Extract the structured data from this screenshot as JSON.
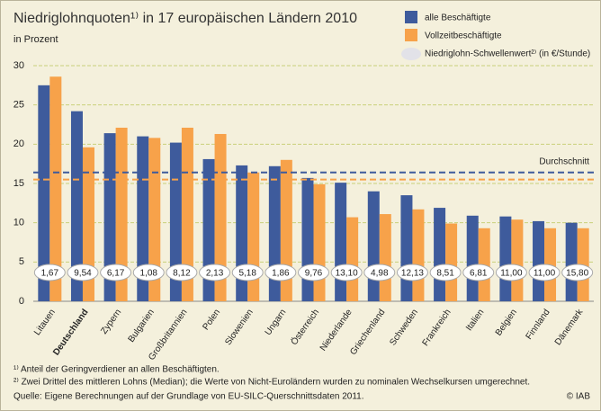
{
  "chart_data": {
    "type": "bar",
    "title": "Niedriglohnquoten¹⁾ in 17 europäischen Ländern 2010",
    "subtitle": "in Prozent",
    "categories": [
      "Litauen",
      "Deutschland",
      "Zypern",
      "Bulgarien",
      "Großbritannien",
      "Polen",
      "Slowenien",
      "Ungarn",
      "Österreich",
      "Niederlande",
      "Griechenland",
      "Schweden",
      "Frankreich",
      "Italien",
      "Belgien",
      "Finnland",
      "Dänemark"
    ],
    "highlight": 1,
    "series": [
      {
        "name": "alle Beschäftigte",
        "color": "#3e5b9c",
        "average": 16.4,
        "values": [
          27.5,
          24.2,
          21.4,
          21.0,
          20.2,
          18.1,
          17.3,
          17.2,
          15.7,
          15.1,
          14.0,
          13.5,
          11.9,
          10.9,
          10.8,
          10.2,
          10.0
        ]
      },
      {
        "name": "Vollzeitbeschäftigte",
        "color": "#f7a24a",
        "average": 15.5,
        "values": [
          28.6,
          19.6,
          22.1,
          20.8,
          22.1,
          21.3,
          16.4,
          18.0,
          14.9,
          10.7,
          11.1,
          11.7,
          9.9,
          9.3,
          10.4,
          9.3,
          9.3
        ]
      }
    ],
    "average_label": "Durchschnitt",
    "threshold": {
      "name": "Niedriglohn-Schwellenwert²⁾ (in €/Stunde)",
      "values": [
        1.67,
        9.54,
        6.17,
        1.08,
        8.12,
        2.13,
        5.18,
        1.86,
        9.76,
        13.1,
        4.98,
        12.13,
        8.51,
        6.81,
        11.0,
        11.0,
        15.8
      ],
      "value_labels": [
        "1,67",
        "9,54",
        "6,17",
        "1,08",
        "8,12",
        "2,13",
        "5,18",
        "1,86",
        "9,76",
        "13,10",
        "4,98",
        "12,13",
        "8,51",
        "6,81",
        "11,00",
        "11,00",
        "15,80"
      ]
    },
    "ylim": [
      0,
      30
    ],
    "yticks": [
      0,
      5,
      10,
      15,
      20,
      25,
      30
    ],
    "grid": true,
    "footnotes": [
      "¹⁾ Anteil der Geringverdiener an allen Beschäftigten.",
      "²⁾ Zwei Drittel des mittleren Lohns (Median); die Werte von Nicht-Euroländern wurden zu nominalen Wechselkursen umgerechnet.",
      "Quelle: Eigene Berechnungen auf der Grundlage von EU-SILC-Querschnittsdaten 2011."
    ],
    "copyright": "© IAB"
  }
}
